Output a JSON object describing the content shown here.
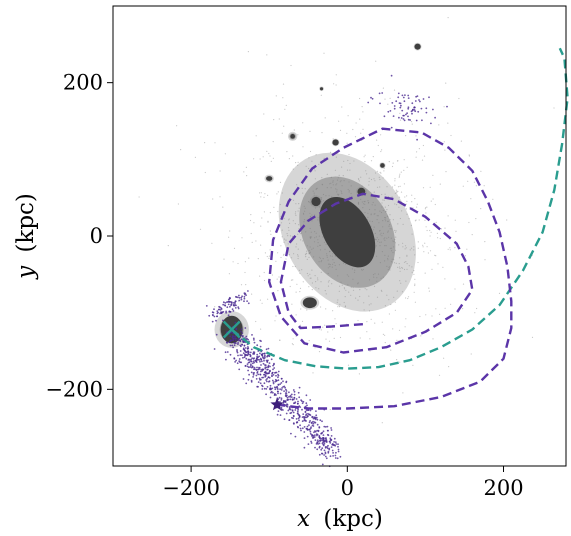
{
  "chart_data": {
    "type": "scatter",
    "title": "",
    "xlabel": {
      "symbol": "x",
      "unit": "(kpc)"
    },
    "ylabel": {
      "symbol": "y",
      "unit": "(kpc)"
    },
    "xlim": [
      -300,
      280
    ],
    "ylim": [
      -300,
      300
    ],
    "grid": false,
    "legend": "none",
    "x_ticks": [
      {
        "value": -200,
        "label": "−200"
      },
      {
        "value": 0,
        "label": "0"
      },
      {
        "value": 200,
        "label": "200"
      }
    ],
    "y_ticks": [
      {
        "value": -200,
        "label": "−200"
      },
      {
        "value": 0,
        "label": "0"
      },
      {
        "value": 200,
        "label": "200"
      }
    ],
    "colors": {
      "orbit_teal": "#2a9d8f",
      "orbit_purple": "#5b35a8",
      "stream_purple": "#4b2a91",
      "host_gray": "#3f3f3f"
    },
    "galaxy_blobs": [
      {
        "name": "host",
        "x": 0,
        "y": 5,
        "rx": 80,
        "ry": 110,
        "rotation": -30,
        "core_rx": 30,
        "core_ry": 50
      },
      {
        "name": "satellite",
        "x": -148,
        "y": -122,
        "rx": 22,
        "ry": 24,
        "rotation": 0,
        "core_rx": 14,
        "core_ry": 18
      },
      {
        "name": "companion-1",
        "x": -48,
        "y": -87,
        "rx": 12,
        "ry": 9,
        "rotation": 0,
        "core_rx": 9,
        "core_ry": 7
      },
      {
        "name": "companion-2",
        "x": -40,
        "y": 45,
        "rx": 8,
        "ry": 8,
        "rotation": 0,
        "core_rx": 6,
        "core_ry": 6
      },
      {
        "name": "companion-3",
        "x": 18,
        "y": 58,
        "rx": 7,
        "ry": 6,
        "rotation": 0,
        "core_rx": 5,
        "core_ry": 5
      },
      {
        "name": "companion-4",
        "x": 90,
        "y": 247,
        "rx": 5,
        "ry": 5,
        "rotation": 0,
        "core_rx": 4,
        "core_ry": 4
      },
      {
        "name": "companion-5",
        "x": -15,
        "y": 122,
        "rx": 5,
        "ry": 5,
        "rotation": 0,
        "core_rx": 4,
        "core_ry": 4
      },
      {
        "name": "companion-6",
        "x": -100,
        "y": 75,
        "rx": 6,
        "ry": 5,
        "rotation": 0,
        "core_rx": 4,
        "core_ry": 3
      },
      {
        "name": "companion-7",
        "x": 45,
        "y": 92,
        "rx": 4,
        "ry": 4,
        "rotation": 0,
        "core_rx": 3,
        "core_ry": 3
      },
      {
        "name": "companion-8",
        "x": -33,
        "y": 192,
        "rx": 3,
        "ry": 3,
        "rotation": 0,
        "core_rx": 2,
        "core_ry": 2
      },
      {
        "name": "companion-9",
        "x": -70,
        "y": 130,
        "rx": 6,
        "ry": 6,
        "rotation": 0,
        "core_rx": 3,
        "core_ry": 3
      }
    ],
    "orbits": [
      {
        "name": "orbit-teal",
        "color": "#2a9d8f",
        "dashed": true,
        "points": [
          [
            -148,
            -122
          ],
          [
            -120,
            -145
          ],
          [
            -80,
            -162
          ],
          [
            -40,
            -170
          ],
          [
            0,
            -173
          ],
          [
            40,
            -171
          ],
          [
            80,
            -162
          ],
          [
            120,
            -145
          ],
          [
            160,
            -122
          ],
          [
            195,
            -90
          ],
          [
            225,
            -45
          ],
          [
            250,
            5
          ],
          [
            265,
            60
          ],
          [
            275,
            120
          ],
          [
            282,
            180
          ],
          [
            278,
            232
          ],
          [
            272,
            245
          ]
        ]
      },
      {
        "name": "orbit-purple",
        "color": "#5b35a8",
        "dashed": true,
        "points": [
          [
            20,
            -115
          ],
          [
            -20,
            -118
          ],
          [
            -60,
            -120
          ],
          [
            -75,
            -100
          ],
          [
            -85,
            -60
          ],
          [
            -75,
            -10
          ],
          [
            -50,
            20
          ],
          [
            -15,
            42
          ],
          [
            20,
            55
          ],
          [
            60,
            48
          ],
          [
            100,
            25
          ],
          [
            140,
            -10
          ],
          [
            155,
            -40
          ],
          [
            160,
            -70
          ],
          [
            140,
            -100
          ],
          [
            100,
            -125
          ],
          [
            50,
            -145
          ],
          [
            -5,
            -152
          ],
          [
            -55,
            -140
          ],
          [
            -85,
            -105
          ],
          [
            -100,
            -60
          ],
          [
            -95,
            -5
          ],
          [
            -75,
            45
          ],
          [
            -45,
            88
          ],
          [
            -5,
            115
          ],
          [
            45,
            140
          ],
          [
            95,
            135
          ],
          [
            130,
            115
          ],
          [
            160,
            85
          ],
          [
            180,
            45
          ],
          [
            195,
            5
          ],
          [
            205,
            -40
          ],
          [
            210,
            -85
          ],
          [
            210,
            -120
          ],
          [
            200,
            -160
          ],
          [
            170,
            -190
          ],
          [
            120,
            -210
          ],
          [
            60,
            -222
          ],
          [
            0,
            -225
          ],
          [
            -50,
            -225
          ],
          [
            -90,
            -220
          ]
        ]
      }
    ],
    "markers": [
      {
        "name": "satellite-position",
        "symbol": "x",
        "x": -148,
        "y": -122,
        "color": "#2a9d8f"
      },
      {
        "name": "stream-progenitor",
        "symbol": "star",
        "x": -90,
        "y": -220,
        "color": "#3d1f7a"
      }
    ],
    "stream": {
      "color": "#4b2a91",
      "n": 900,
      "segments": [
        {
          "from": [
            -150,
            -125
          ],
          "to": [
            -20,
            -280
          ],
          "spread": 9
        },
        {
          "from": [
            -170,
            -100
          ],
          "to": [
            -130,
            -80
          ],
          "spread": 5
        },
        {
          "from": [
            60,
            170
          ],
          "to": [
            90,
            160
          ],
          "spread": 14
        }
      ]
    }
  }
}
